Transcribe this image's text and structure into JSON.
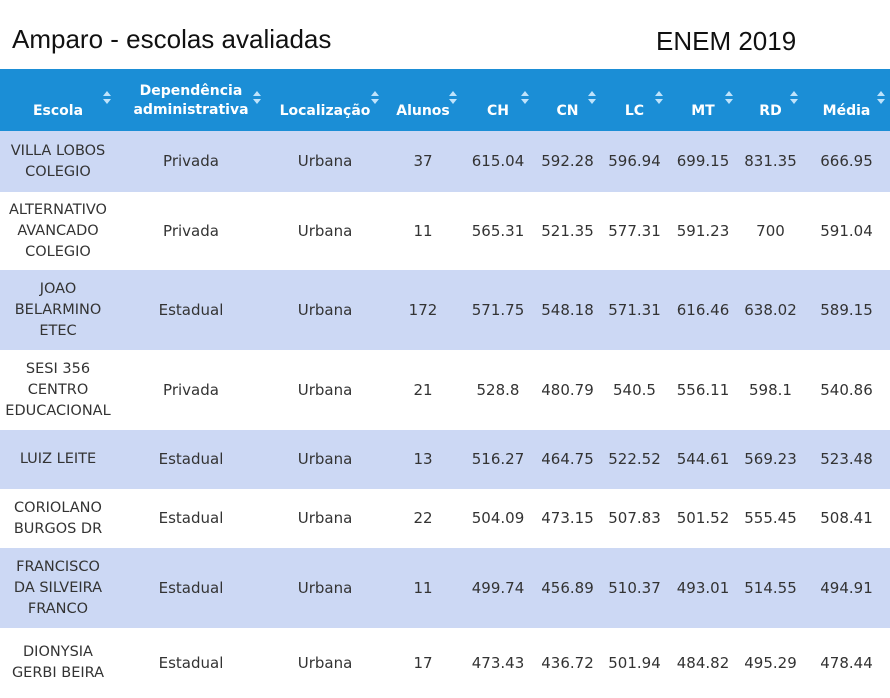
{
  "title": "Amparo - escolas avaliadas",
  "subtitle": "ENEM 2019",
  "colors": {
    "header_bg": "#1b8ed6",
    "row_alt": "#ccd8f4",
    "row_plain": "#ffffff"
  },
  "table": {
    "columns": [
      {
        "line1": "Escola",
        "line2": ""
      },
      {
        "line1": "Dependência",
        "line2": "administrativa"
      },
      {
        "line1": "Localização",
        "line2": ""
      },
      {
        "line1": "Alunos",
        "line2": ""
      },
      {
        "line1": "CH",
        "line2": ""
      },
      {
        "line1": "CN",
        "line2": ""
      },
      {
        "line1": "LC",
        "line2": ""
      },
      {
        "line1": "MT",
        "line2": ""
      },
      {
        "line1": "RD",
        "line2": ""
      },
      {
        "line1": "Média",
        "line2": ""
      }
    ],
    "rows": [
      {
        "escola": [
          "VILLA LOBOS",
          "COLEGIO",
          ""
        ],
        "dep": "Privada",
        "loc": "Urbana",
        "alunos": "37",
        "ch": "615.04",
        "cn": "592.28",
        "lc": "596.94",
        "mt": "699.15",
        "rd": "831.35",
        "media": "666.95"
      },
      {
        "escola": [
          "ALTERNATIVO",
          "AVANCADO",
          "COLEGIO"
        ],
        "dep": "Privada",
        "loc": "Urbana",
        "alunos": "11",
        "ch": "565.31",
        "cn": "521.35",
        "lc": "577.31",
        "mt": "591.23",
        "rd": "700",
        "media": "591.04"
      },
      {
        "escola": [
          "JOAO",
          "BELARMINO",
          "ETEC"
        ],
        "dep": "Estadual",
        "loc": "Urbana",
        "alunos": "172",
        "ch": "571.75",
        "cn": "548.18",
        "lc": "571.31",
        "mt": "616.46",
        "rd": "638.02",
        "media": "589.15"
      },
      {
        "escola": [
          "SESI 356",
          "CENTRO",
          "EDUCACIONAL"
        ],
        "dep": "Privada",
        "loc": "Urbana",
        "alunos": "21",
        "ch": "528.8",
        "cn": "480.79",
        "lc": "540.5",
        "mt": "556.11",
        "rd": "598.1",
        "media": "540.86"
      },
      {
        "escola": [
          "LUIZ LEITE",
          "",
          ""
        ],
        "dep": "Estadual",
        "loc": "Urbana",
        "alunos": "13",
        "ch": "516.27",
        "cn": "464.75",
        "lc": "522.52",
        "mt": "544.61",
        "rd": "569.23",
        "media": "523.48"
      },
      {
        "escola": [
          "CORIOLANO",
          "BURGOS DR",
          ""
        ],
        "dep": "Estadual",
        "loc": "Urbana",
        "alunos": "22",
        "ch": "504.09",
        "cn": "473.15",
        "lc": "507.83",
        "mt": "501.52",
        "rd": "555.45",
        "media": "508.41"
      },
      {
        "escola": [
          "FRANCISCO",
          "DA SILVEIRA",
          "FRANCO"
        ],
        "dep": "Estadual",
        "loc": "Urbana",
        "alunos": "11",
        "ch": "499.74",
        "cn": "456.89",
        "lc": "510.37",
        "mt": "493.01",
        "rd": "514.55",
        "media": "494.91"
      },
      {
        "escola": [
          "DIONYSIA",
          "GERBI BEIRA",
          ""
        ],
        "dep": "Estadual",
        "loc": "Urbana",
        "alunos": "17",
        "ch": "473.43",
        "cn": "436.72",
        "lc": "501.94",
        "mt": "484.82",
        "rd": "495.29",
        "media": "478.44"
      }
    ]
  }
}
